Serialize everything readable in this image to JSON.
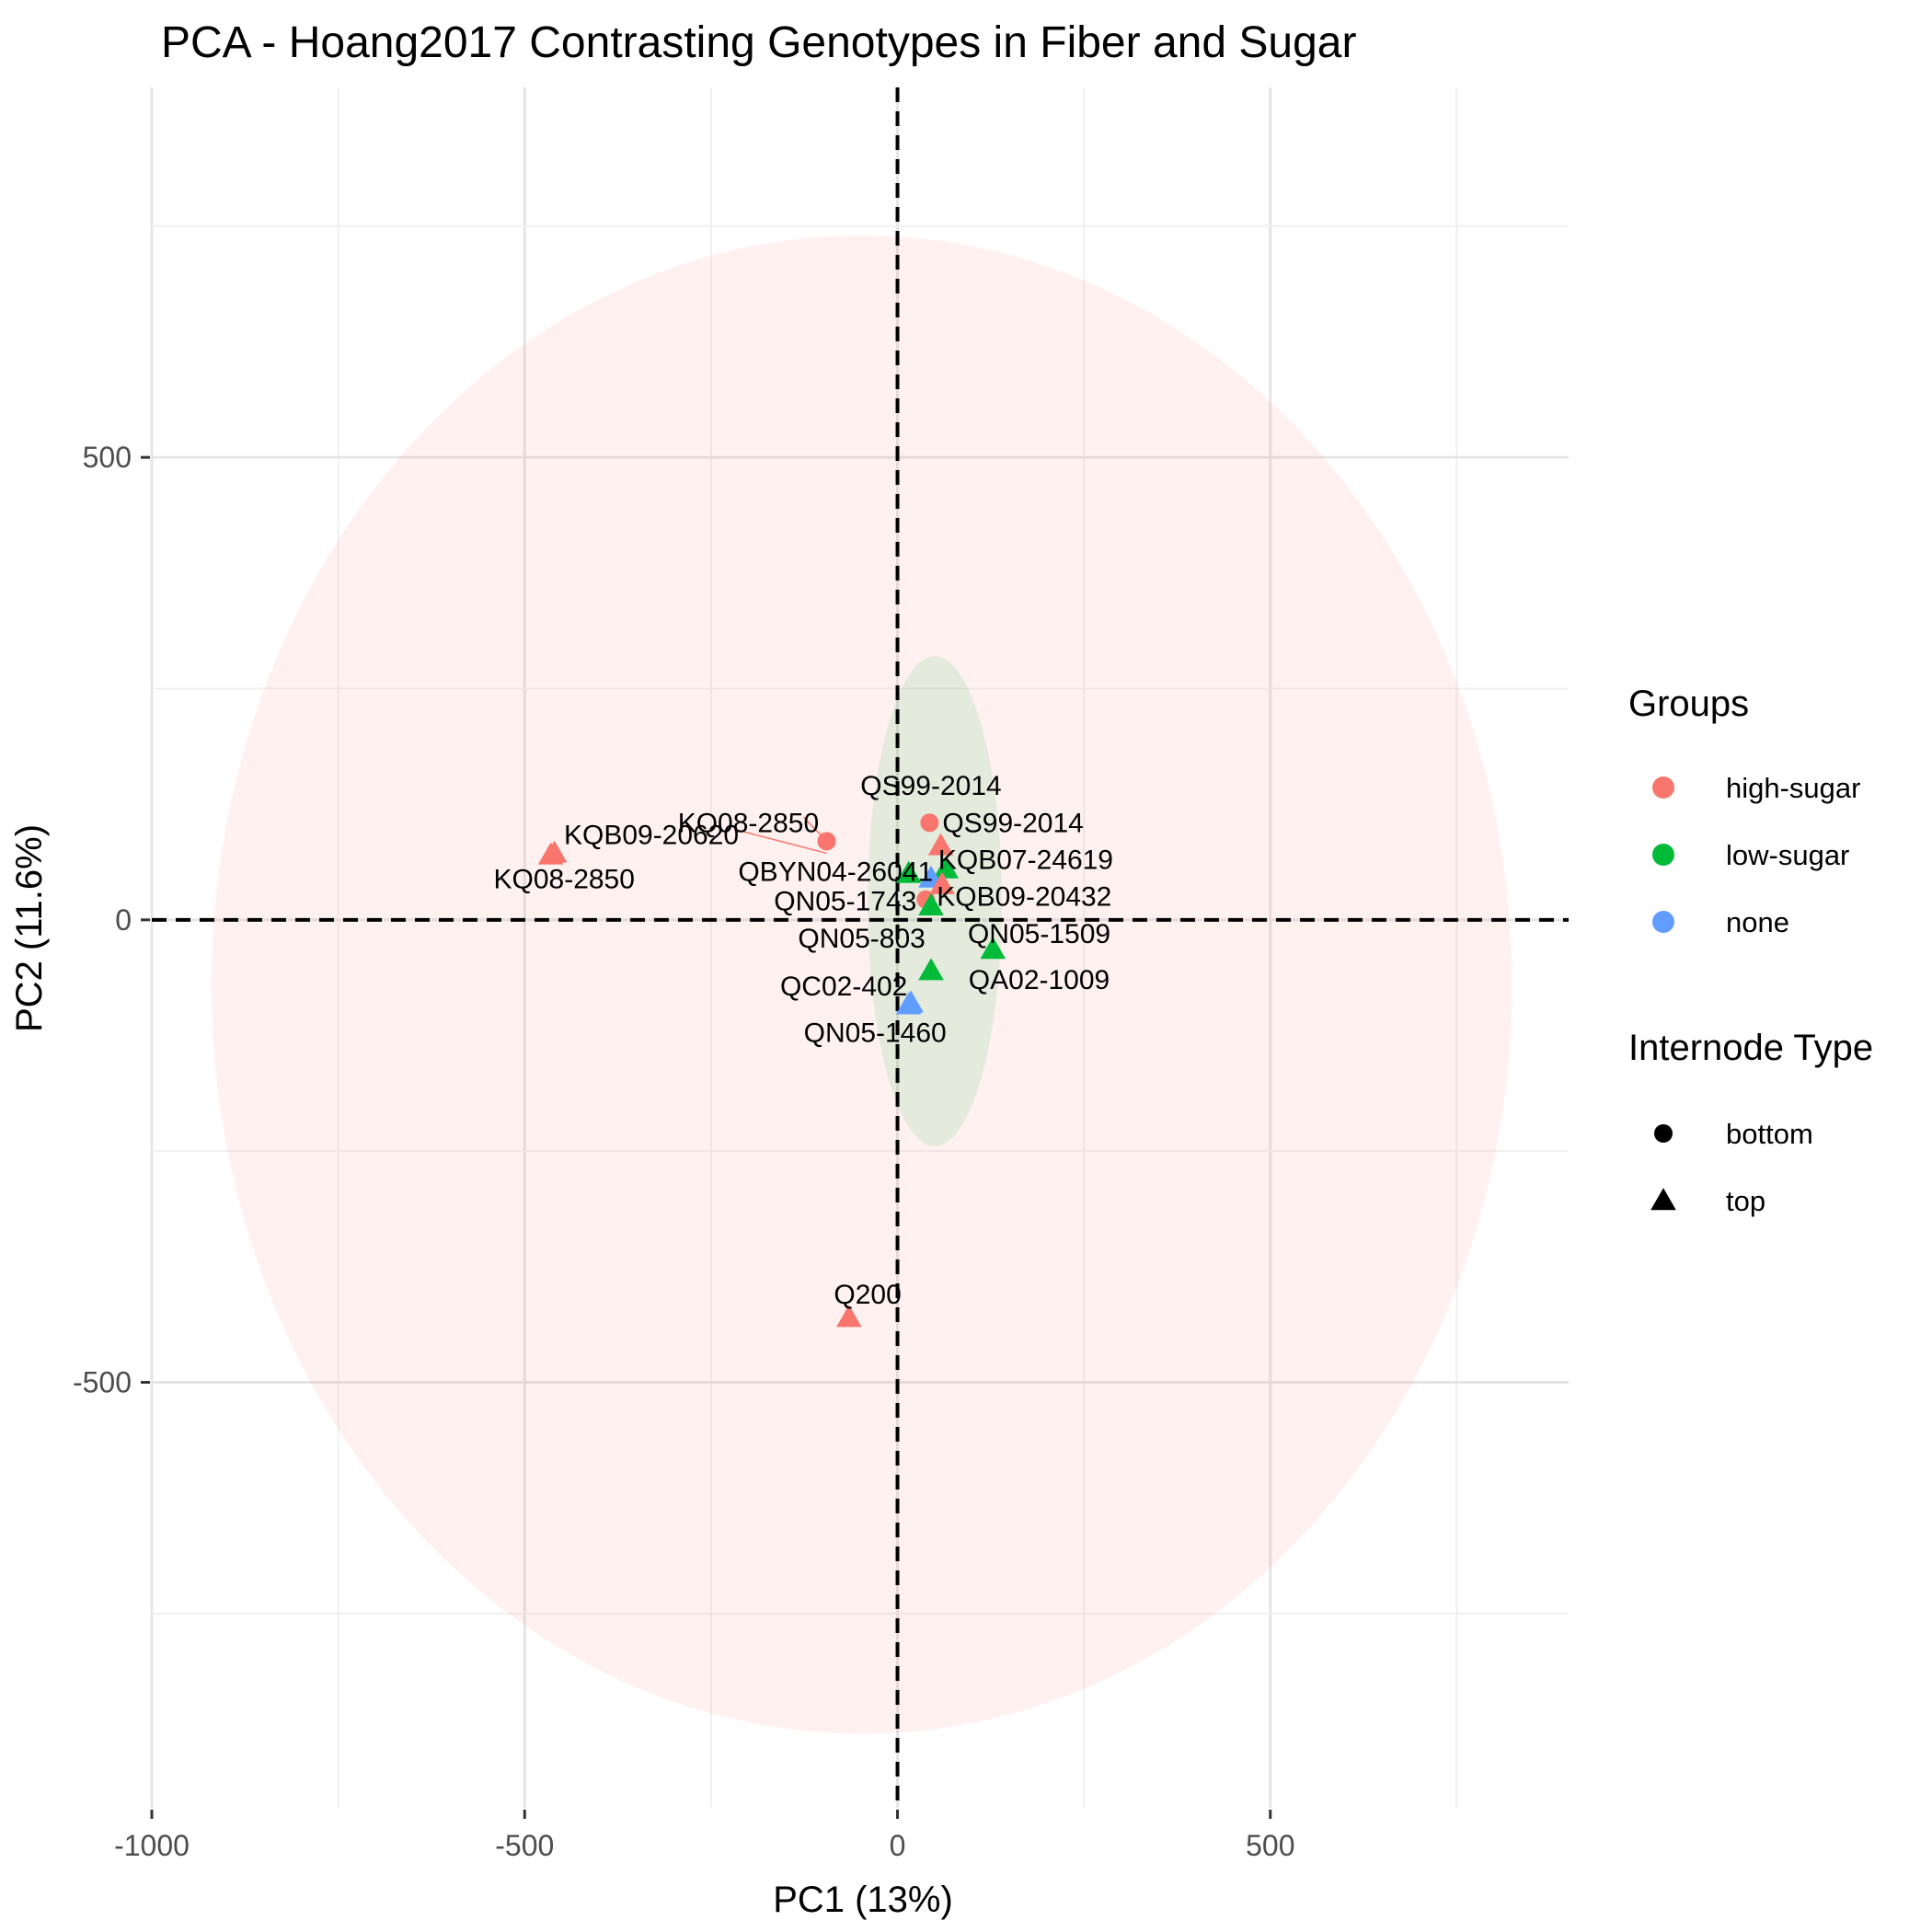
{
  "chart_data": {
    "type": "scatter",
    "title": "PCA - Hoang2017 Contrasting Genotypes in Fiber and Sugar",
    "xlabel": "PC1 (13%)",
    "ylabel": "PC2 (11.6%)",
    "xlim": [
      -1000,
      900
    ],
    "ylim": [
      -960,
      900
    ],
    "x_ticks": [
      -1000,
      -500,
      0,
      500
    ],
    "y_ticks": [
      -500,
      0,
      500
    ],
    "grid": true,
    "reference_lines": {
      "x": 0,
      "y": 0,
      "style": "dashed"
    },
    "legend_position": "right",
    "colors": {
      "high-sugar": "#F8766D",
      "low-sugar": "#00BA38",
      "none": "#619CFF"
    },
    "ellipses": [
      {
        "group": "high-sugar",
        "cx": -48,
        "cy": -70,
        "rx": 872,
        "ry": 810,
        "fill": "#F8766D",
        "opacity": 0.1
      },
      {
        "group": "low-sugar",
        "cx": 50,
        "cy": 20,
        "rx": 90,
        "ry": 265,
        "fill": "#00BA38",
        "opacity": 0.1
      }
    ],
    "points": [
      {
        "label": "KQB09-20620",
        "x": -465,
        "y": 70,
        "group": "high-sugar",
        "internode": "top"
      },
      {
        "label": "KQ08-2850",
        "x": -95,
        "y": 85,
        "group": "high-sugar",
        "internode": "bottom"
      },
      {
        "label": "KQ08-2850",
        "x": -460,
        "y": 72,
        "group": "high-sugar",
        "internode": "top"
      },
      {
        "label": "QS99-2014",
        "x": 43,
        "y": 105,
        "group": "high-sugar",
        "internode": "bottom"
      },
      {
        "label": "QS99-2014",
        "x": 58,
        "y": 80,
        "group": "high-sugar",
        "internode": "top"
      },
      {
        "label": "KQB07-24619",
        "x": 65,
        "y": 55,
        "group": "low-sugar",
        "internode": "top"
      },
      {
        "label": "QBYN04-26041",
        "x": 15,
        "y": 50,
        "group": "low-sugar",
        "internode": "top"
      },
      {
        "label": "QBYN04-26041",
        "x": 45,
        "y": 45,
        "group": "none",
        "internode": "top"
      },
      {
        "label": "KQB09-20432",
        "x": 60,
        "y": 38,
        "group": "high-sugar",
        "internode": "top"
      },
      {
        "label": "QN05-1743",
        "x": 38,
        "y": 22,
        "group": "high-sugar",
        "internode": "bottom"
      },
      {
        "label": "QN05-803",
        "x": 45,
        "y": 15,
        "group": "low-sugar",
        "internode": "top"
      },
      {
        "label": "QN05-1509",
        "x": 128,
        "y": -32,
        "group": "low-sugar",
        "internode": "top"
      },
      {
        "label": "QA02-1009",
        "x": 45,
        "y": -55,
        "group": "low-sugar",
        "internode": "top"
      },
      {
        "label": "QC02-402",
        "x": 15,
        "y": -92,
        "group": "none",
        "internode": "top"
      },
      {
        "label": "QN05-1460",
        "x": 18,
        "y": -90,
        "group": "none",
        "internode": "top"
      },
      {
        "label": "Q200",
        "x": -65,
        "y": -430,
        "group": "high-sugar",
        "internode": "top"
      }
    ],
    "annotations": [
      {
        "text": "KQB09-20620",
        "x": -330,
        "y": 92
      },
      {
        "text": "KQ08-2850",
        "x": -200,
        "y": 105
      },
      {
        "text": "KQ08-2850",
        "x": -447,
        "y": 44
      },
      {
        "text": "QS99-2014",
        "x": 45,
        "y": 145
      },
      {
        "text": "QS99-2014",
        "x": 155,
        "y": 105
      },
      {
        "text": "KQB07-24619",
        "x": 172,
        "y": 65
      },
      {
        "text": "QBYN04-26041",
        "x": -83,
        "y": 52
      },
      {
        "text": "KQB09-20432",
        "x": 170,
        "y": 25
      },
      {
        "text": "QN05-1743",
        "x": -70,
        "y": 20
      },
      {
        "text": "QN05-1509",
        "x": 190,
        "y": -15
      },
      {
        "text": "QN05-803",
        "x": -48,
        "y": -20
      },
      {
        "text": "QA02-1009",
        "x": 190,
        "y": -65
      },
      {
        "text": "QC02-402",
        "x": -72,
        "y": -72
      },
      {
        "text": "QN05-1460",
        "x": -30,
        "y": -122
      },
      {
        "text": "Q200",
        "x": -40,
        "y": -405
      }
    ],
    "legend": {
      "groups_title": "Groups",
      "groups": [
        {
          "name": "high-sugar",
          "color": "#F8766D"
        },
        {
          "name": "low-sugar",
          "color": "#00BA38"
        },
        {
          "name": "none",
          "color": "#619CFF"
        }
      ],
      "shape_title": "Internode Type",
      "shapes": [
        {
          "name": "bottom",
          "shape": "circle"
        },
        {
          "name": "top",
          "shape": "triangle"
        }
      ]
    }
  }
}
